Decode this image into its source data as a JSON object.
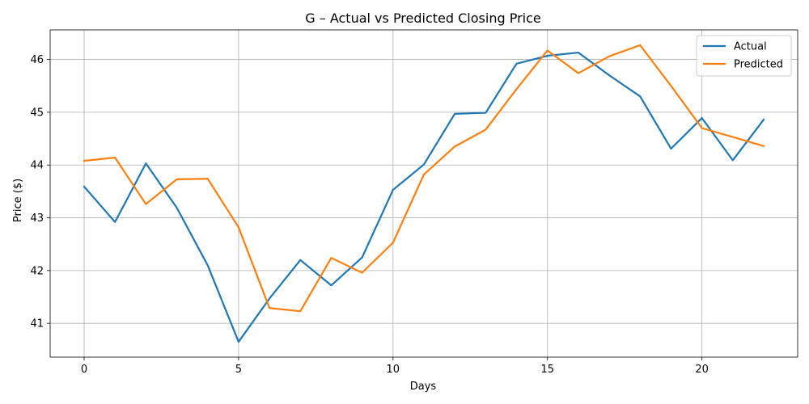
{
  "chart_data": {
    "type": "line",
    "title": "G – Actual vs Predicted Closing Price",
    "xlabel": "Days",
    "ylabel": "Price ($)",
    "xlim": [
      -1.1,
      23.1
    ],
    "ylim": [
      40.36,
      46.56
    ],
    "xticks": [
      0,
      5,
      10,
      15,
      20
    ],
    "yticks": [
      41,
      42,
      43,
      44,
      45,
      46
    ],
    "grid": true,
    "legend_position": "top-right",
    "x": [
      0,
      1,
      2,
      3,
      4,
      5,
      6,
      7,
      8,
      9,
      10,
      11,
      12,
      13,
      14,
      15,
      16,
      17,
      18,
      19,
      20,
      21,
      22
    ],
    "series": [
      {
        "name": "Actual",
        "color": "#1f77b4",
        "values": [
          43.59,
          42.92,
          44.03,
          43.19,
          42.1,
          40.65,
          41.47,
          42.2,
          41.72,
          42.25,
          43.53,
          44.01,
          44.97,
          44.99,
          45.92,
          46.07,
          46.13,
          45.7,
          45.3,
          44.31,
          44.89,
          44.09,
          44.86
        ]
      },
      {
        "name": "Predicted",
        "color": "#ff7f0e",
        "values": [
          44.08,
          44.14,
          43.26,
          43.73,
          43.74,
          42.82,
          41.29,
          41.23,
          42.24,
          41.96,
          42.53,
          43.82,
          44.35,
          44.67,
          45.44,
          46.17,
          45.74,
          46.06,
          46.27,
          45.5,
          44.7,
          44.53,
          44.36
        ]
      }
    ]
  }
}
